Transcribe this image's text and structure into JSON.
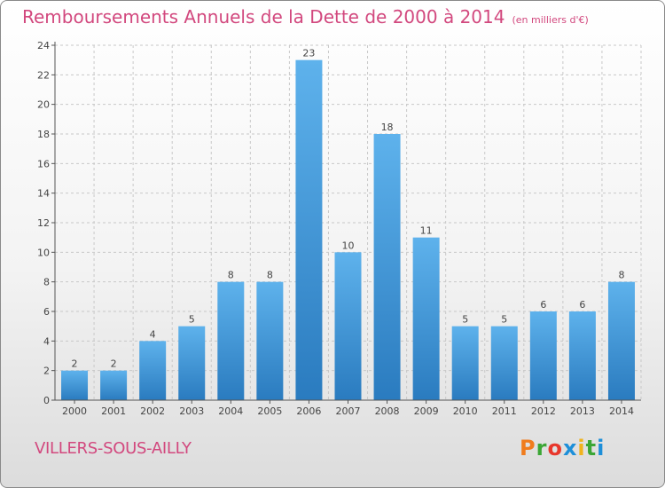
{
  "header": {
    "title": "Remboursements Annuels de la Dette de 2000 à 2014",
    "unit_note": "(en milliers d'€)"
  },
  "footer": {
    "commune": "VILLERS-SOUS-AILLY",
    "brand_letters": [
      "P",
      "r",
      "o",
      "x",
      "i",
      "t",
      "i"
    ],
    "brand_colors": [
      "#f07c1d",
      "#3ba635",
      "#e8372c",
      "#1d8fd9",
      "#f0b31d",
      "#3ba635",
      "#1d8fd9"
    ]
  },
  "colors": {
    "bar_top": "#5eb2ec",
    "bar_bottom": "#2a7bbf",
    "title": "#d2487e",
    "grid": "#c8c8c8",
    "axis_text": "#444444"
  },
  "chart_data": {
    "type": "bar",
    "title": "Remboursements Annuels de la Dette de 2000 à 2014",
    "xlabel": "",
    "ylabel": "",
    "categories": [
      "2000",
      "2001",
      "2002",
      "2003",
      "2004",
      "2005",
      "2006",
      "2007",
      "2008",
      "2009",
      "2010",
      "2011",
      "2012",
      "2013",
      "2014"
    ],
    "values": [
      2,
      2,
      4,
      5,
      8,
      8,
      23,
      10,
      18,
      11,
      5,
      5,
      6,
      6,
      8
    ],
    "ylim": [
      0,
      24
    ],
    "yticks": [
      0,
      2,
      4,
      6,
      8,
      10,
      12,
      14,
      16,
      18,
      20,
      22,
      24
    ],
    "grid": true,
    "data_labels": true
  }
}
